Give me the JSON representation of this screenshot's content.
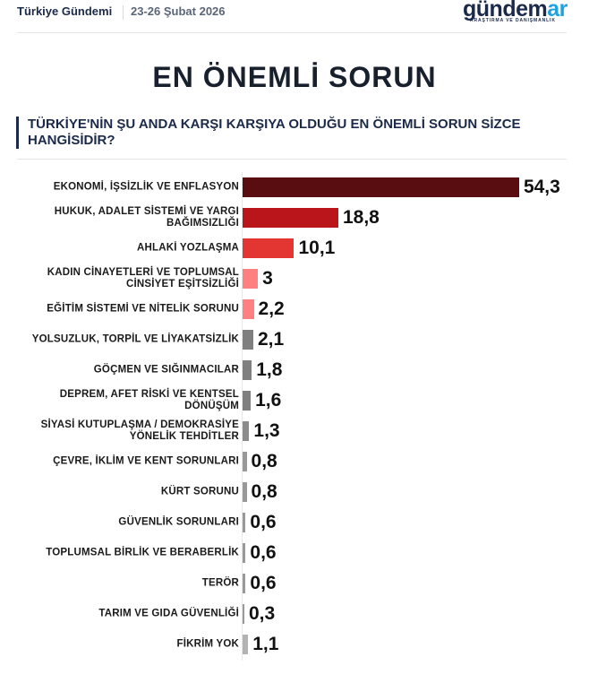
{
  "header": {
    "brand": "Türkiye Gündemi",
    "date": "23-26 Şubat 2026",
    "logo_main_prefix": "gündem",
    "logo_main_accent": "ar",
    "logo_sub": "ARAŞTIRMA VE DANIŞMANLIK"
  },
  "title": "EN ÖNEMLİ SORUN",
  "question": "TÜRKİYE'NİN ŞU ANDA KARŞI KARŞIYA OLDUĞU EN ÖNEMLİ SORUN SİZCE HANGİSİDİR?",
  "colors": {
    "dark_red": "#5a0d10",
    "red": "#b9151b",
    "light_red": "#e33532",
    "pink": "#ff8080",
    "gray_dark": "#7f7f7f",
    "gray_mid": "#999999",
    "gray_light": "#b3b3b3",
    "navy": "#1b2a4a",
    "logo_accent": "#1fa3e0"
  },
  "chart_data": {
    "type": "bar",
    "orientation": "horizontal",
    "title": "EN ÖNEMLİ SORUN",
    "subtitle": "TÜRKİYE'NİN ŞU ANDA KARŞI KARŞIYA OLDUĞU EN ÖNEMLİ SORUN SİZCE HANGİSİDİR?",
    "xlabel": "",
    "ylabel": "",
    "unit": "%",
    "grid": false,
    "categories": [
      "EKONOMİ, İŞSİZLİK VE ENFLASYON",
      "HUKUK, ADALET SİSTEMİ VE YARGI BAĞIMSIZLIĞI",
      "AHLAKİ YOZLAŞMA",
      "KADIN CİNAYETLERİ VE TOPLUMSAL CİNSİYET EŞİTSİZLİĞİ",
      "EĞİTİM SİSTEMİ VE NİTELİK SORUNU",
      "YOLSUZLUK, TORPİL VE LİYAKATSİZLİK",
      "GÖÇMEN VE SIĞINMACILAR",
      "DEPREM, AFET RİSKİ VE KENTSEL DÖNÜŞÜM",
      "SİYASİ KUTUPLAŞMA / DEMOKRASİYE YÖNELİK TEHDİTLER",
      "ÇEVRE, İKLİM VE KENT SORUNLARI",
      "KÜRT SORUNU",
      "GÜVENLİK SORUNLARI",
      "TOPLUMSAL BİRLİK VE BERABERLİK",
      "TERÖR",
      "TARIM VE GIDA GÜVENLİĞİ",
      "FİKRİM YOK"
    ],
    "values": [
      54.3,
      18.8,
      10.1,
      3,
      2.2,
      2.1,
      1.8,
      1.6,
      1.3,
      0.8,
      0.8,
      0.6,
      0.6,
      0.6,
      0.3,
      1.1
    ],
    "value_labels": [
      "54,3",
      "18,8",
      "10,1",
      "3",
      "2,2",
      "2,1",
      "1,8",
      "1,6",
      "1,3",
      "0,8",
      "0,8",
      "0,6",
      "0,6",
      "0,6",
      "0,3",
      "1,1"
    ],
    "bar_colors": [
      "#5a0d10",
      "#b9151b",
      "#e33532",
      "#ff8080",
      "#ff8080",
      "#7f7f7f",
      "#7f7f7f",
      "#7f7f7f",
      "#8c8c8c",
      "#999999",
      "#999999",
      "#999999",
      "#999999",
      "#999999",
      "#999999",
      "#b3b3b3"
    ]
  }
}
